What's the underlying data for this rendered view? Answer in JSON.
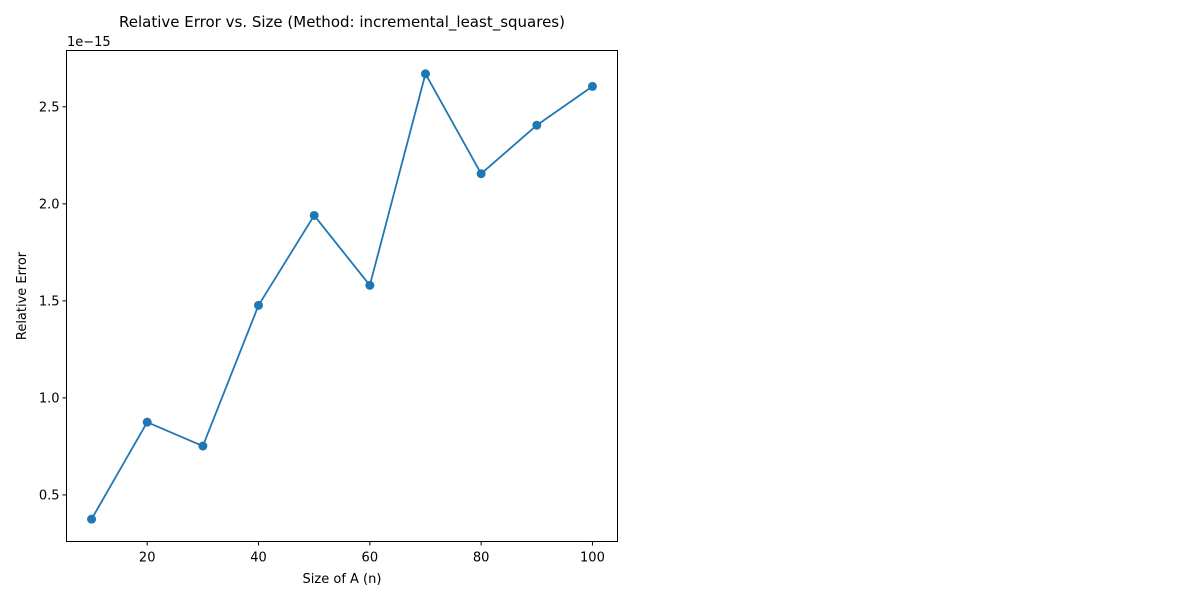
{
  "chart_data": {
    "type": "line",
    "title": "Relative Error vs. Size (Method: incremental_least_squares)",
    "xlabel": "Size of A (n)",
    "ylabel": "Relative Error",
    "y_offset_label": "1e−15",
    "x": [
      10,
      20,
      30,
      40,
      50,
      60,
      70,
      80,
      90,
      100
    ],
    "series": [
      {
        "values": [
          0.375,
          0.875,
          0.752,
          1.477,
          1.94,
          1.58,
          2.67,
          2.155,
          2.405,
          2.605
        ],
        "color": "#1f77b4",
        "marker": "circle"
      }
    ],
    "xlim": [
      5.5,
      104.5
    ],
    "ylim": [
      0.26,
      2.79
    ],
    "x_ticks": [
      20,
      40,
      60,
      80,
      100
    ],
    "x_tick_labels": [
      "20",
      "40",
      "60",
      "80",
      "100"
    ],
    "y_ticks": [
      0.5,
      1.0,
      1.5,
      2.0,
      2.5
    ],
    "y_tick_labels": [
      "0.5",
      "1.0",
      "1.5",
      "2.0",
      "2.5"
    ],
    "grid": false,
    "legend": "none"
  }
}
